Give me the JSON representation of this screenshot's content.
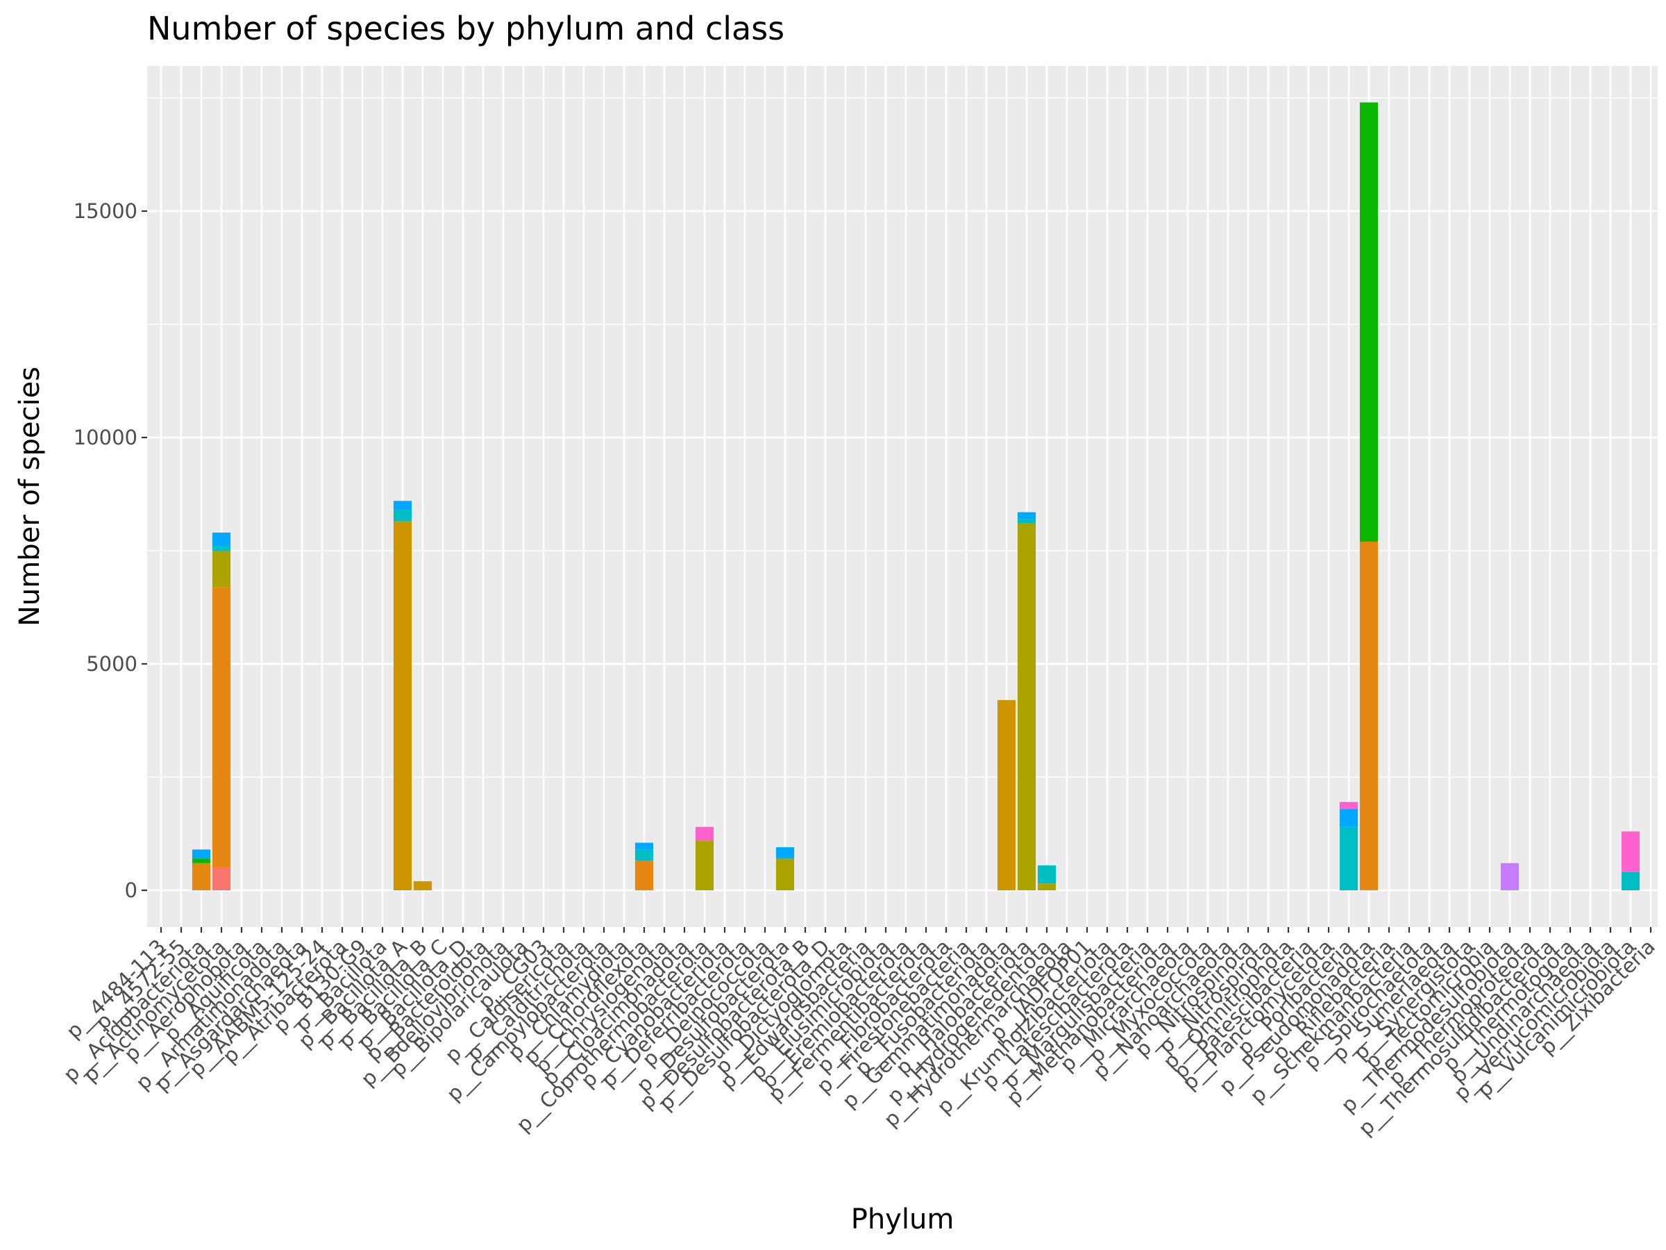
{
  "chart_data": {
    "type": "bar",
    "title": "Number of species by phylum and class",
    "xlabel": "Phylum",
    "ylabel": "Number of species",
    "ylim": [
      -1100,
      17800
    ],
    "yticks": [
      0,
      5000,
      10000,
      15000
    ],
    "stacked": true,
    "grid": true,
    "legend": "none",
    "panel_background": "#ebebeb",
    "grid_color": "#ffffff",
    "categories": [
      "p__4484-113",
      "p__4572-55",
      "p__Acidobacteriota",
      "p__Actinomycetota",
      "p__Aerophobota",
      "p__Aquificota",
      "p__Armatimonadota",
      "p__Asgardarchaeota",
      "p__AABM5-125-24",
      "p__Atribacterota",
      "p__B130-G9",
      "p__Bacillota",
      "p__Bacillota_A",
      "p__Bacillota_B",
      "p__Bacillota_C",
      "p__Bacillota_D",
      "p__Bacteroidota",
      "p__Bdellovibrionota",
      "p__Bipolaricaulota",
      "p__CG03",
      "p__Caldisericota",
      "p__Calditrichota",
      "p__Campylobacterota",
      "p__Chlamydiota",
      "p__Chloroflexota",
      "p__Chrysiogenota",
      "p__Cloacimonadota",
      "p__Coprothermobacterota",
      "p__Cyanobacteriota",
      "p__Deferribacterota",
      "p__Deinococcota",
      "p__Desulfobacterota",
      "p__Desulfobacterota_B",
      "p__Desulfobacterota_D",
      "p__Dictyoglomota",
      "p__Edwardsbacteria",
      "p__Elusimicrobiota",
      "p__Eremiobacterota",
      "p__Fermentibacterota",
      "p__Fibrobacterota",
      "p__Firestonebacteria",
      "p__Fusobacteriota",
      "p__Gemmatimonadota",
      "p__Halobacteriota",
      "p__Hydrogenedentota",
      "p__Hydrothermarchaeota",
      "p__JADFOP01",
      "p__Krumholzibacteriota",
      "p__Latescibacterota",
      "p__Margulisbacteria",
      "p__Methanobacteriota",
      "p__Micrarchaeota",
      "p__Myxococcota",
      "p__Nanoarchaeota",
      "p__Nitrospinota",
      "p__Nitrospirota",
      "p__Omnitrophota",
      "p__Patescibacteria",
      "p__Planctomycetota",
      "p__Poribacteria",
      "p__Pseudomonadota",
      "p__Riflebacteria",
      "p__Schekmanbacteria",
      "p__Spirochaetota",
      "p__Sumerlaeota",
      "p__Synergistota",
      "p__Tectomicrobia",
      "p__Thermodesulfobiota",
      "p__Thermoproteota",
      "p__Thermosulfidibacterota",
      "p__Thermotogota",
      "p__Undinarchaeota",
      "p__Verrucomicrobiota",
      "p__Vulcanimicrobiota",
      "p__Zixibacteria"
    ],
    "series": [
      {
        "values": [
          0,
          0,
          0,
          500,
          0,
          0,
          0,
          0,
          0,
          0,
          0,
          0,
          0,
          0,
          0,
          0,
          0,
          0,
          0,
          0,
          0,
          0,
          0,
          0,
          0,
          0,
          0,
          0,
          0,
          0,
          0,
          0,
          0,
          0,
          0,
          0,
          0,
          0,
          0,
          0,
          0,
          0,
          0,
          0,
          0,
          0,
          0,
          0,
          0,
          0,
          0,
          0,
          0,
          0,
          0,
          0,
          0,
          0,
          0,
          0,
          0,
          0,
          0,
          0,
          0,
          0,
          0,
          0,
          0,
          0,
          0,
          0,
          0,
          0,
          0
        ]
      },
      {
        "values": [
          0,
          0,
          600,
          6200,
          0,
          0,
          0,
          0,
          0,
          0,
          0,
          0,
          0,
          0,
          0,
          0,
          0,
          0,
          0,
          0,
          0,
          0,
          0,
          0,
          650,
          0,
          0,
          0,
          0,
          0,
          0,
          0,
          0,
          0,
          0,
          0,
          0,
          0,
          0,
          0,
          0,
          0,
          0,
          0,
          0,
          0,
          0,
          0,
          0,
          0,
          0,
          0,
          0,
          0,
          0,
          0,
          0,
          0,
          0,
          0,
          7700,
          0,
          0,
          0,
          0,
          0,
          0,
          0,
          0,
          0,
          0,
          0,
          0,
          0,
          0
        ]
      },
      {
        "values": [
          0,
          0,
          0,
          0,
          0,
          0,
          0,
          0,
          0,
          0,
          0,
          0,
          8150,
          200,
          0,
          0,
          0,
          0,
          0,
          0,
          0,
          0,
          0,
          0,
          0,
          0,
          0,
          0,
          0,
          0,
          0,
          0,
          0,
          0,
          0,
          0,
          0,
          0,
          0,
          0,
          0,
          0,
          4200,
          0,
          0,
          0,
          0,
          0,
          0,
          0,
          0,
          0,
          0,
          0,
          0,
          0,
          0,
          0,
          0,
          0,
          0,
          0,
          0,
          0,
          0,
          0,
          0,
          0,
          0,
          0,
          0,
          0,
          0,
          0,
          0
        ]
      },
      {
        "values": [
          0,
          0,
          0,
          800,
          0,
          0,
          0,
          0,
          0,
          0,
          0,
          0,
          0,
          0,
          0,
          0,
          0,
          0,
          0,
          0,
          0,
          0,
          0,
          0,
          0,
          0,
          0,
          1100,
          0,
          0,
          0,
          700,
          0,
          0,
          0,
          0,
          0,
          0,
          0,
          0,
          0,
          0,
          0,
          8100,
          150,
          0,
          0,
          0,
          0,
          0,
          0,
          0,
          0,
          0,
          0,
          0,
          0,
          0,
          0,
          0,
          0,
          0,
          0,
          0,
          0,
          0,
          0,
          0,
          0,
          0,
          0,
          0,
          0,
          0,
          0
        ]
      },
      {
        "values": [
          0,
          0,
          100,
          0,
          0,
          0,
          0,
          0,
          0,
          0,
          0,
          0,
          0,
          0,
          0,
          0,
          0,
          0,
          0,
          0,
          0,
          0,
          0,
          0,
          0,
          0,
          0,
          0,
          0,
          0,
          0,
          0,
          0,
          0,
          0,
          0,
          0,
          0,
          0,
          0,
          0,
          0,
          0,
          0,
          0,
          0,
          0,
          0,
          0,
          0,
          0,
          0,
          0,
          0,
          0,
          0,
          0,
          0,
          0,
          0,
          9700,
          0,
          0,
          0,
          0,
          0,
          0,
          0,
          0,
          0,
          0,
          0,
          0,
          0,
          0
        ]
      },
      {
        "values": [
          0,
          0,
          0,
          100,
          0,
          0,
          0,
          0,
          0,
          0,
          0,
          0,
          250,
          0,
          0,
          0,
          0,
          0,
          0,
          0,
          0,
          0,
          0,
          0,
          250,
          0,
          0,
          0,
          0,
          0,
          0,
          0,
          0,
          0,
          0,
          0,
          0,
          0,
          0,
          0,
          0,
          0,
          0,
          100,
          400,
          0,
          0,
          0,
          0,
          0,
          0,
          0,
          0,
          0,
          0,
          0,
          0,
          0,
          0,
          1400,
          0,
          0,
          0,
          0,
          0,
          0,
          0,
          0,
          0,
          0,
          0,
          0,
          0,
          400,
          0
        ]
      },
      {
        "values": [
          0,
          0,
          200,
          300,
          0,
          0,
          0,
          0,
          0,
          0,
          0,
          0,
          200,
          0,
          0,
          0,
          0,
          0,
          0,
          0,
          0,
          0,
          0,
          0,
          150,
          0,
          0,
          0,
          0,
          0,
          0,
          250,
          0,
          0,
          0,
          0,
          0,
          0,
          0,
          0,
          0,
          0,
          0,
          150,
          0,
          0,
          0,
          0,
          0,
          0,
          0,
          0,
          0,
          0,
          0,
          0,
          0,
          0,
          0,
          400,
          0,
          0,
          0,
          0,
          0,
          0,
          0,
          0,
          0,
          0,
          0,
          0,
          0,
          0,
          0
        ]
      },
      {
        "values": [
          0,
          0,
          0,
          0,
          0,
          0,
          0,
          0,
          0,
          0,
          0,
          0,
          0,
          0,
          0,
          0,
          0,
          0,
          0,
          0,
          0,
          0,
          0,
          0,
          0,
          0,
          0,
          0,
          0,
          0,
          0,
          0,
          0,
          0,
          0,
          0,
          0,
          0,
          0,
          0,
          0,
          0,
          0,
          0,
          0,
          0,
          0,
          0,
          0,
          0,
          0,
          0,
          0,
          0,
          0,
          0,
          0,
          0,
          0,
          0,
          0,
          0,
          0,
          0,
          0,
          0,
          0,
          600,
          0,
          0,
          0,
          0,
          0,
          0,
          0
        ]
      },
      {
        "values": [
          0,
          0,
          0,
          0,
          0,
          0,
          0,
          0,
          0,
          0,
          0,
          0,
          0,
          0,
          0,
          0,
          0,
          0,
          0,
          0,
          0,
          0,
          0,
          0,
          0,
          0,
          0,
          300,
          0,
          0,
          0,
          0,
          0,
          0,
          0,
          0,
          0,
          0,
          0,
          0,
          0,
          0,
          0,
          0,
          0,
          0,
          0,
          0,
          0,
          0,
          0,
          0,
          0,
          0,
          0,
          0,
          0,
          0,
          0,
          150,
          0,
          0,
          0,
          0,
          0,
          0,
          0,
          0,
          0,
          0,
          0,
          0,
          0,
          900,
          0
        ]
      }
    ]
  }
}
